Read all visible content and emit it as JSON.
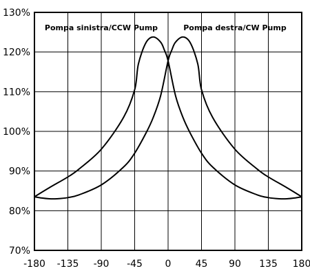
{
  "chart_data": {
    "type": "line",
    "title": "",
    "xlabel": "",
    "ylabel": "",
    "xlim": [
      -180,
      180
    ],
    "ylim": [
      70,
      130
    ],
    "x_ticks": [
      "-180",
      "-135",
      "-90",
      "-45",
      "0",
      "45",
      "90",
      "135",
      "180"
    ],
    "y_ticks": [
      "70%",
      "80%",
      "90%",
      "100%",
      "110%",
      "120%",
      "130%"
    ],
    "grid": true,
    "annotations": {
      "left": "Pompa sinistra/CCW Pump",
      "right": "Pompa destra/CW Pump"
    },
    "series": [
      {
        "x": [
          -180,
          -160,
          -135,
          -120,
          -90,
          -60,
          -45,
          -40,
          -30,
          -20,
          -10,
          -5,
          0,
          10,
          20,
          30,
          45,
          60,
          90,
          120,
          135,
          150,
          160,
          170,
          180
        ],
        "y": [
          83.5,
          85.8,
          88.5,
          90.5,
          95.5,
          103.5,
          110.5,
          117,
          122.3,
          123.8,
          122.5,
          120.5,
          117.8,
          109,
          103.5,
          99.5,
          94.5,
          91,
          86.5,
          84,
          83.3,
          83,
          83,
          83.2,
          83.5
        ]
      },
      {
        "x": [
          -180,
          -170,
          -160,
          -150,
          -135,
          -120,
          -90,
          -60,
          -45,
          -30,
          -20,
          -10,
          0,
          5,
          10,
          20,
          30,
          40,
          45,
          60,
          90,
          120,
          135,
          160,
          180
        ],
        "y": [
          83.5,
          83.2,
          83,
          83,
          83.3,
          84,
          86.5,
          91,
          94.5,
          99.5,
          103.5,
          109,
          117.8,
          120.5,
          122.5,
          123.8,
          122.3,
          117,
          110.5,
          103.5,
          95.5,
          90.5,
          88.5,
          85.8,
          83.5
        ]
      }
    ]
  }
}
